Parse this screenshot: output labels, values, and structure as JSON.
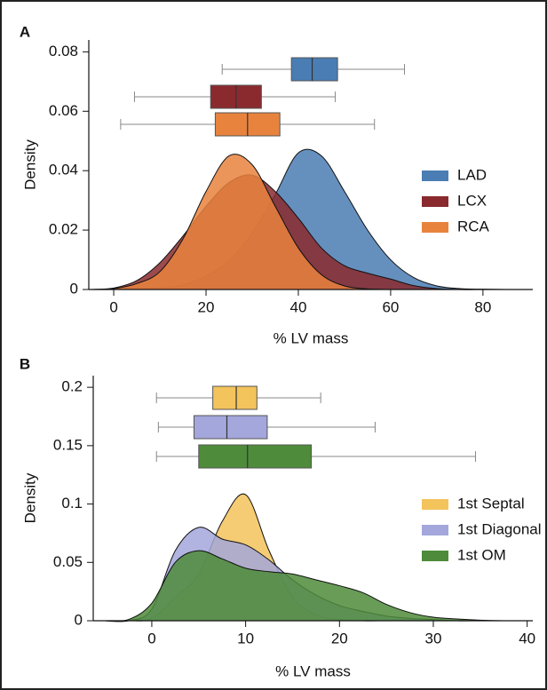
{
  "chart_data": [
    {
      "type": "density",
      "panel": "A",
      "xlabel": "% LV mass",
      "ylabel": "Density",
      "xlim": [
        -5.4,
        90.8
      ],
      "ylim": [
        0,
        0.084
      ],
      "xticks": [
        0,
        20,
        40,
        60,
        80
      ],
      "yticks": [
        0,
        0.02,
        0.04,
        0.06,
        0.08
      ],
      "legend": "right",
      "x": [
        -5,
        0,
        5,
        10,
        15,
        20,
        25,
        30,
        35,
        40,
        45,
        50,
        55,
        60,
        65,
        70,
        75,
        80,
        85,
        90
      ],
      "series": [
        {
          "name": "LAD",
          "color": "#4a7db3",
          "values": [
            0,
            0,
            0.0002,
            0.0006,
            0.0015,
            0.0045,
            0.0097,
            0.019,
            0.032,
            0.046,
            0.045,
            0.033,
            0.02,
            0.01,
            0.004,
            0.0012,
            0.0003,
            0.0001,
            0,
            0
          ],
          "box": {
            "min": 23.5,
            "q1": 38.5,
            "median": 43,
            "q3": 48.5,
            "max": 63
          }
        },
        {
          "name": "LCX",
          "color": "#8a2a2e",
          "values": [
            0,
            0.0005,
            0.003,
            0.009,
            0.018,
            0.028,
            0.036,
            0.0385,
            0.033,
            0.024,
            0.014,
            0.008,
            0.0055,
            0.0035,
            0.0013,
            0.0003,
            0,
            0,
            0,
            0
          ],
          "box": {
            "min": 4.5,
            "q1": 21,
            "median": 26.5,
            "q3": 32,
            "max": 48
          }
        },
        {
          "name": "RCA",
          "color": "#e8833e",
          "values": [
            0,
            0.0003,
            0.002,
            0.006,
            0.017,
            0.033,
            0.045,
            0.042,
            0.028,
            0.014,
            0.005,
            0.0012,
            0.0002,
            0,
            0,
            0,
            0,
            0,
            0,
            0
          ],
          "box": {
            "min": 1.5,
            "q1": 22,
            "median": 29,
            "q3": 36,
            "max": 56.5
          }
        }
      ]
    },
    {
      "type": "density",
      "panel": "B",
      "xlabel": "% LV mass",
      "ylabel": "Density",
      "xlim": [
        -6.24,
        40.6
      ],
      "ylim": [
        0,
        0.21
      ],
      "xticks": [
        0,
        10,
        20,
        30,
        40
      ],
      "yticks": [
        0,
        0.05,
        0.1,
        0.15,
        0.2
      ],
      "legend": "right",
      "x": [
        -5,
        -2.5,
        0,
        2.5,
        5,
        7.5,
        10,
        12.5,
        15,
        17.5,
        20,
        22.5,
        25,
        27.5,
        30,
        32.5,
        35,
        37.5,
        40
      ],
      "series": [
        {
          "name": "1st Septal",
          "color": "#f3c35c",
          "values": [
            0,
            0,
            0.002,
            0.02,
            0.04,
            0.085,
            0.108,
            0.06,
            0.02,
            0.005,
            0.001,
            0,
            0,
            0,
            0,
            0,
            0,
            0,
            0
          ],
          "box": {
            "min": 0.5,
            "q1": 6.5,
            "median": 9,
            "q3": 11.2,
            "max": 18
          }
        },
        {
          "name": "1st Diagonal",
          "color": "#a3a7db",
          "values": [
            0,
            0,
            0.01,
            0.06,
            0.08,
            0.07,
            0.065,
            0.052,
            0.035,
            0.022,
            0.013,
            0.008,
            0.004,
            0.002,
            0.001,
            0,
            0,
            0,
            0
          ],
          "box": {
            "min": 0.7,
            "q1": 4.5,
            "median": 8,
            "q3": 12.3,
            "max": 23.8
          }
        },
        {
          "name": "1st OM",
          "color": "#4e8b3a",
          "values": [
            0,
            0.001,
            0.015,
            0.05,
            0.06,
            0.053,
            0.045,
            0.042,
            0.04,
            0.035,
            0.03,
            0.024,
            0.014,
            0.007,
            0.003,
            0.0015,
            0.0005,
            0,
            0
          ],
          "box": {
            "min": 0.5,
            "q1": 5,
            "median": 10.2,
            "q3": 17,
            "max": 34.5
          }
        }
      ]
    }
  ]
}
